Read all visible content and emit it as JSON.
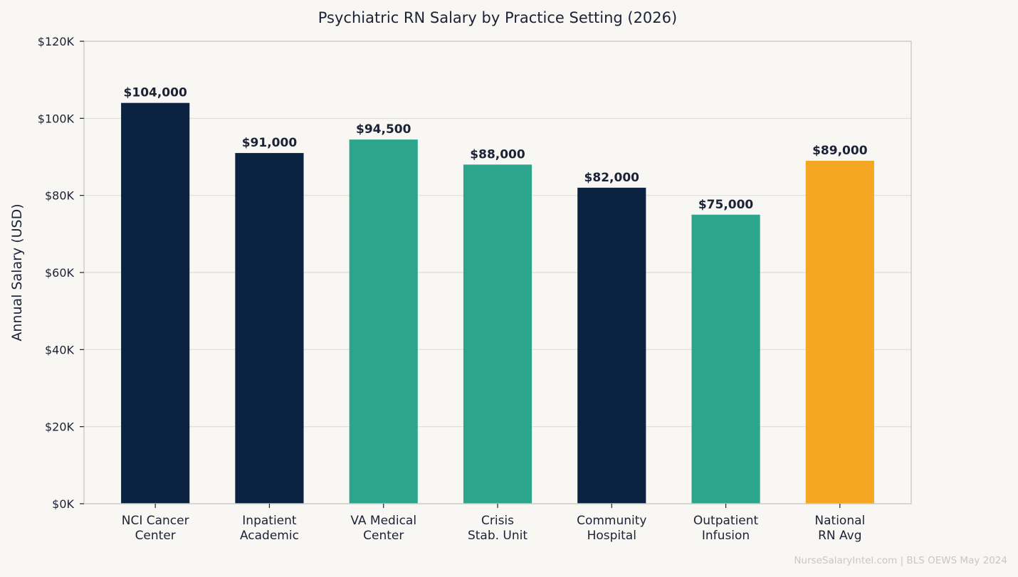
{
  "chart_data": {
    "type": "bar",
    "title": "Psychiatric RN Salary by Practice Setting (2026)",
    "xlabel": "",
    "ylabel": "Annual Salary (USD)",
    "ylim": [
      0,
      120000
    ],
    "yticks": [
      {
        "value": 0,
        "label": "$0K"
      },
      {
        "value": 20000,
        "label": "$20K"
      },
      {
        "value": 40000,
        "label": "$40K"
      },
      {
        "value": 60000,
        "label": "$60K"
      },
      {
        "value": 80000,
        "label": "$80K"
      },
      {
        "value": 100000,
        "label": "$100K"
      },
      {
        "value": 120000,
        "label": "$120K"
      }
    ],
    "grid": true,
    "categories": [
      [
        "NCI Cancer",
        "Center"
      ],
      [
        "Inpatient",
        "Academic"
      ],
      [
        "VA Medical",
        "Center"
      ],
      [
        "Crisis",
        "Stab. Unit"
      ],
      [
        "Community",
        "Hospital"
      ],
      [
        "Outpatient",
        "Infusion"
      ],
      [
        "National",
        "RN Avg"
      ]
    ],
    "values": [
      104000,
      91000,
      94500,
      88000,
      82000,
      75000,
      89000
    ],
    "value_labels": [
      "$104,000",
      "$91,000",
      "$94,500",
      "$88,000",
      "$82,000",
      "$75,000",
      "$89,000"
    ],
    "bar_colors": [
      "#0b2341",
      "#0b2341",
      "#2ca58c",
      "#2ca58c",
      "#0b2341",
      "#2ca58c",
      "#f5a623"
    ]
  },
  "watermark": "NurseSalaryIntel.com | BLS OEWS May 2024"
}
